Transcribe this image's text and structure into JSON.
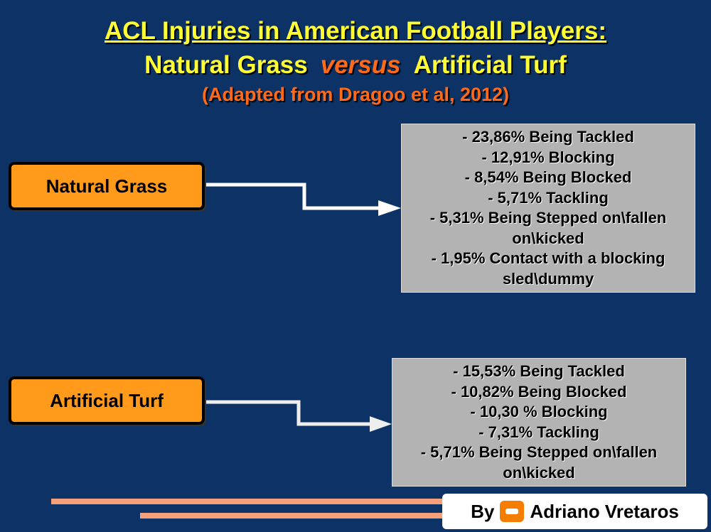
{
  "header": {
    "title": "ACL Injuries in American Football Players:",
    "subtitle_left": "Natural Grass",
    "subtitle_middle": "versus",
    "subtitle_right": "Artificial Turf",
    "source": "(Adapted from Dragoo et al, 2012)"
  },
  "groups": [
    {
      "label": "Natural Grass",
      "items": [
        "- 23,86%  Being Tackled",
        "- 12,91%  Blocking",
        "- 8,54%  Being Blocked",
        "- 5,71% Tackling",
        "- 5,31%  Being Stepped on\\fallen on\\kicked",
        "- 1,95%  Contact with a blocking sled\\dummy"
      ]
    },
    {
      "label": "Artificial Turf",
      "items": [
        "- 15,53%  Being Tackled",
        "- 10,82%  Being Blocked",
        "- 10,30 %  Blocking",
        "- 7,31% Tackling",
        "- 5,71%  Being Stepped on\\fallen on\\kicked"
      ]
    }
  ],
  "footer": {
    "by": "By",
    "author": "Adriano Vretaros"
  }
}
